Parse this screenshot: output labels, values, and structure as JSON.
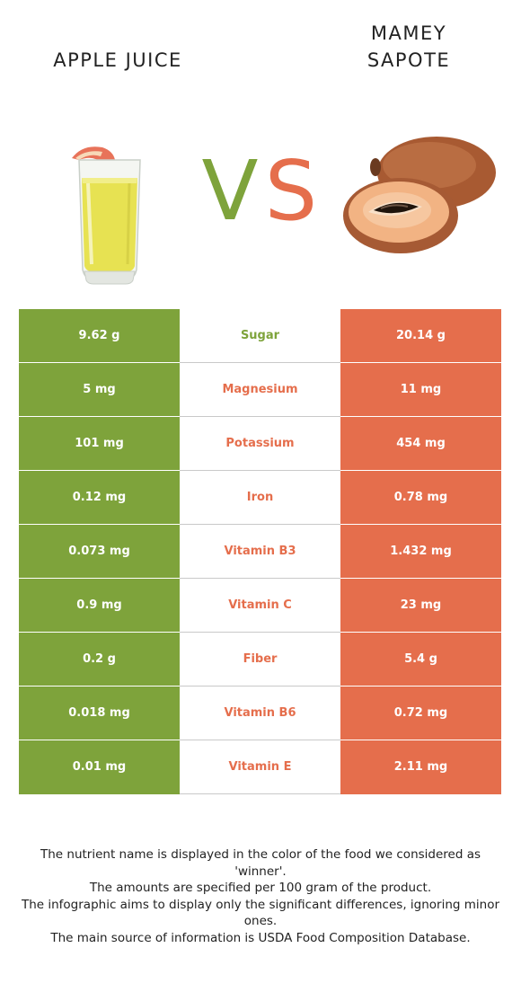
{
  "header": {
    "left_food": "APPLE JUICE",
    "right_food_line1": "MAMEY",
    "right_food_line2": "SAPOTE",
    "vs_left": "V",
    "vs_right": "S"
  },
  "colors": {
    "left": "#7ea33b",
    "right": "#e56e4c"
  },
  "images": {
    "left": "apple-juice-glass",
    "right": "mamey-sapote-fruit"
  },
  "rows": [
    {
      "nutrient": "Sugar",
      "left": "9.62 g",
      "right": "20.14 g",
      "winner": "left"
    },
    {
      "nutrient": "Magnesium",
      "left": "5 mg",
      "right": "11 mg",
      "winner": "right"
    },
    {
      "nutrient": "Potassium",
      "left": "101 mg",
      "right": "454 mg",
      "winner": "right"
    },
    {
      "nutrient": "Iron",
      "left": "0.12 mg",
      "right": "0.78 mg",
      "winner": "right"
    },
    {
      "nutrient": "Vitamin B3",
      "left": "0.073 mg",
      "right": "1.432 mg",
      "winner": "right"
    },
    {
      "nutrient": "Vitamin C",
      "left": "0.9 mg",
      "right": "23 mg",
      "winner": "right"
    },
    {
      "nutrient": "Fiber",
      "left": "0.2 g",
      "right": "5.4 g",
      "winner": "right"
    },
    {
      "nutrient": "Vitamin B6",
      "left": "0.018 mg",
      "right": "0.72 mg",
      "winner": "right"
    },
    {
      "nutrient": "Vitamin E",
      "left": "0.01 mg",
      "right": "2.11 mg",
      "winner": "right"
    }
  ],
  "footnote": [
    "The nutrient name is displayed in the color of the food we considered as 'winner'.",
    "The amounts are specified per 100 gram of the product.",
    "The infographic aims to display only the significant differences, ignoring minor ones.",
    "The main source of information is USDA Food Composition Database."
  ]
}
